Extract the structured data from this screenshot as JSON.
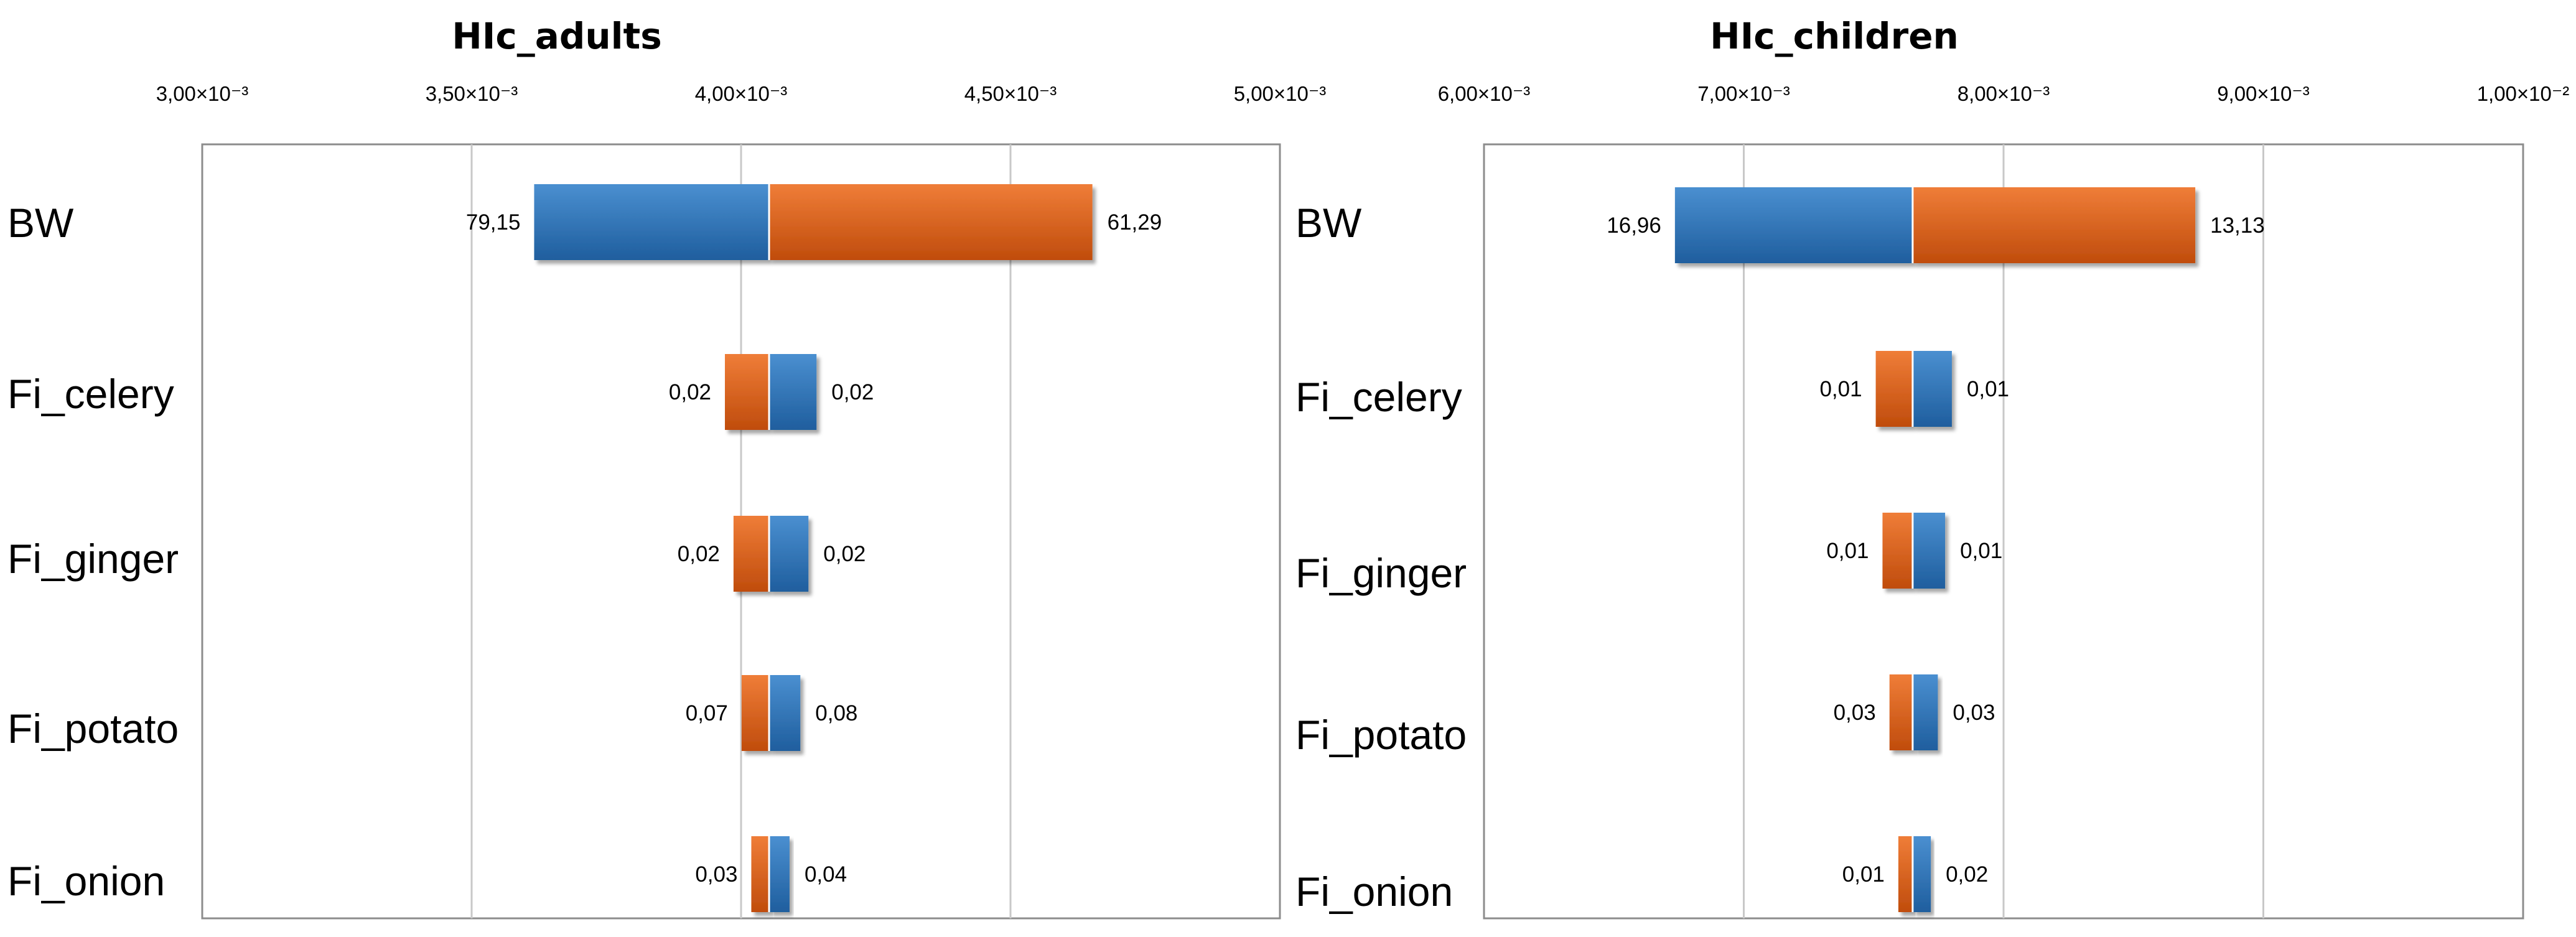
{
  "chart_data": [
    {
      "type": "bar",
      "subtype": "tornado",
      "title": "HIc_adults",
      "xlim": [
        0.003,
        0.005
      ],
      "baseline": 0.004052,
      "ticks": [
        0.003,
        0.0035,
        0.004,
        0.0045,
        0.005
      ],
      "tick_labels": [
        "3,00×10⁻³",
        "3,50×10⁻³",
        "4,00×10⁻³",
        "4,50×10⁻³",
        "5,00×10⁻³"
      ],
      "grid": true,
      "categories": [
        "BW",
        "Fi_celery",
        "Fi_ginger",
        "Fi_potato",
        "Fi_onion"
      ],
      "bars": [
        {
          "category": "BW",
          "left": 0.003616,
          "right": 0.004652,
          "left_color": "blue",
          "right_color": "orange",
          "left_label": "79,15",
          "right_label": "61,29"
        },
        {
          "category": "Fi_celery",
          "left": 0.00397,
          "right": 0.00414,
          "left_color": "orange",
          "right_color": "blue",
          "left_label": "0,02",
          "right_label": "0,02"
        },
        {
          "category": "Fi_ginger",
          "left": 0.003986,
          "right": 0.004125,
          "left_color": "orange",
          "right_color": "blue",
          "left_label": "0,02",
          "right_label": "0,02"
        },
        {
          "category": "Fi_potato",
          "left": 0.004001,
          "right": 0.00411,
          "left_color": "orange",
          "right_color": "blue",
          "left_label": "0,07",
          "right_label": "0,08"
        },
        {
          "category": "Fi_onion",
          "left": 0.004019,
          "right": 0.00409,
          "left_color": "orange",
          "right_color": "blue",
          "left_label": "0,03",
          "right_label": "0,04"
        }
      ]
    },
    {
      "type": "bar",
      "subtype": "tornado",
      "title": "HIc_children",
      "xlim": [
        0.006,
        0.01
      ],
      "baseline": 0.00765,
      "ticks": [
        0.006,
        0.007,
        0.008,
        0.009,
        0.01
      ],
      "tick_labels": [
        "6,00×10⁻³",
        "7,00×10⁻³",
        "8,00×10⁻³",
        "9,00×10⁻³",
        "1,00×10⁻²"
      ],
      "grid": true,
      "categories": [
        "BW",
        "Fi_celery",
        "Fi_ginger",
        "Fi_potato",
        "Fi_onion"
      ],
      "bars": [
        {
          "category": "BW",
          "left": 0.006735,
          "right": 0.008738,
          "left_color": "blue",
          "right_color": "orange",
          "left_label": "16,96",
          "right_label": "13,13"
        },
        {
          "category": "Fi_celery",
          "left": 0.007508,
          "right": 0.007801,
          "left_color": "orange",
          "right_color": "blue",
          "left_label": "0,01",
          "right_label": "0,01"
        },
        {
          "category": "Fi_ginger",
          "left": 0.007534,
          "right": 0.007775,
          "left_color": "orange",
          "right_color": "blue",
          "left_label": "0,01",
          "right_label": "0,01"
        },
        {
          "category": "Fi_potato",
          "left": 0.007561,
          "right": 0.007747,
          "left_color": "orange",
          "right_color": "blue",
          "left_label": "0,03",
          "right_label": "0,03"
        },
        {
          "category": "Fi_onion",
          "left": 0.007595,
          "right": 0.00772,
          "left_color": "orange",
          "right_color": "blue",
          "left_label": "0,01",
          "right_label": "0,02"
        }
      ]
    }
  ],
  "colors": {
    "blue_top": "#4a8fd0",
    "blue_bottom": "#1f5e9e",
    "orange_top": "#ef7d38",
    "orange_bottom": "#c04c0c",
    "grid": "#c8c8c8",
    "frame": "#8c8c8c",
    "text": "#000000"
  }
}
